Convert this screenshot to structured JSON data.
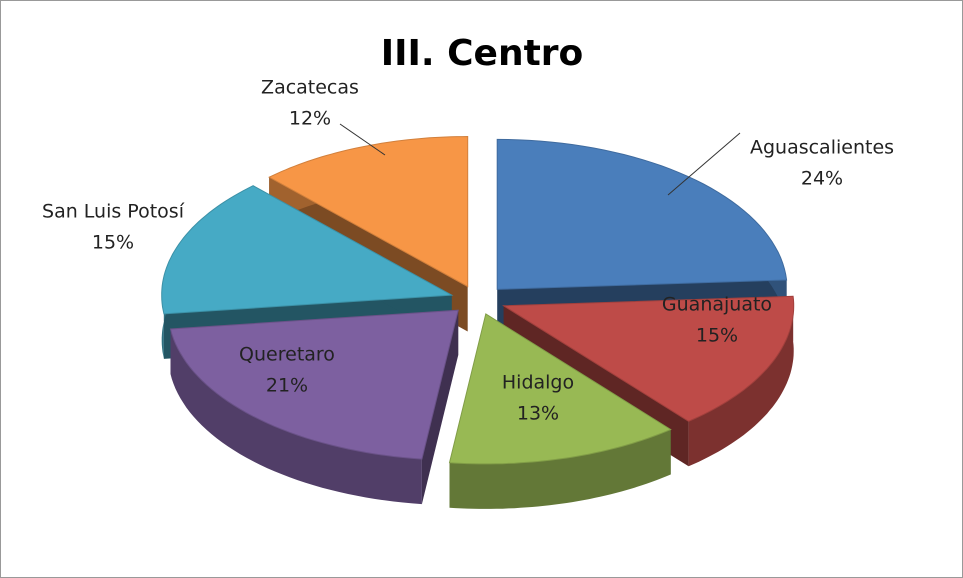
{
  "chart_data": {
    "type": "pie",
    "title": "III. Centro",
    "categories": [
      "Aguascalientes",
      "Guanajuato",
      "Hidalgo",
      "Queretaro",
      "San Luis Potosí",
      "Zacatecas"
    ],
    "values": [
      24,
      15,
      13,
      21,
      15,
      12
    ],
    "value_labels": [
      "24%",
      "15%",
      "13%",
      "21%",
      "15%",
      "12%"
    ],
    "colors": [
      "#4a7ebb",
      "#be4b48",
      "#98b954",
      "#7d60a0",
      "#46aac5",
      "#f79646"
    ]
  }
}
